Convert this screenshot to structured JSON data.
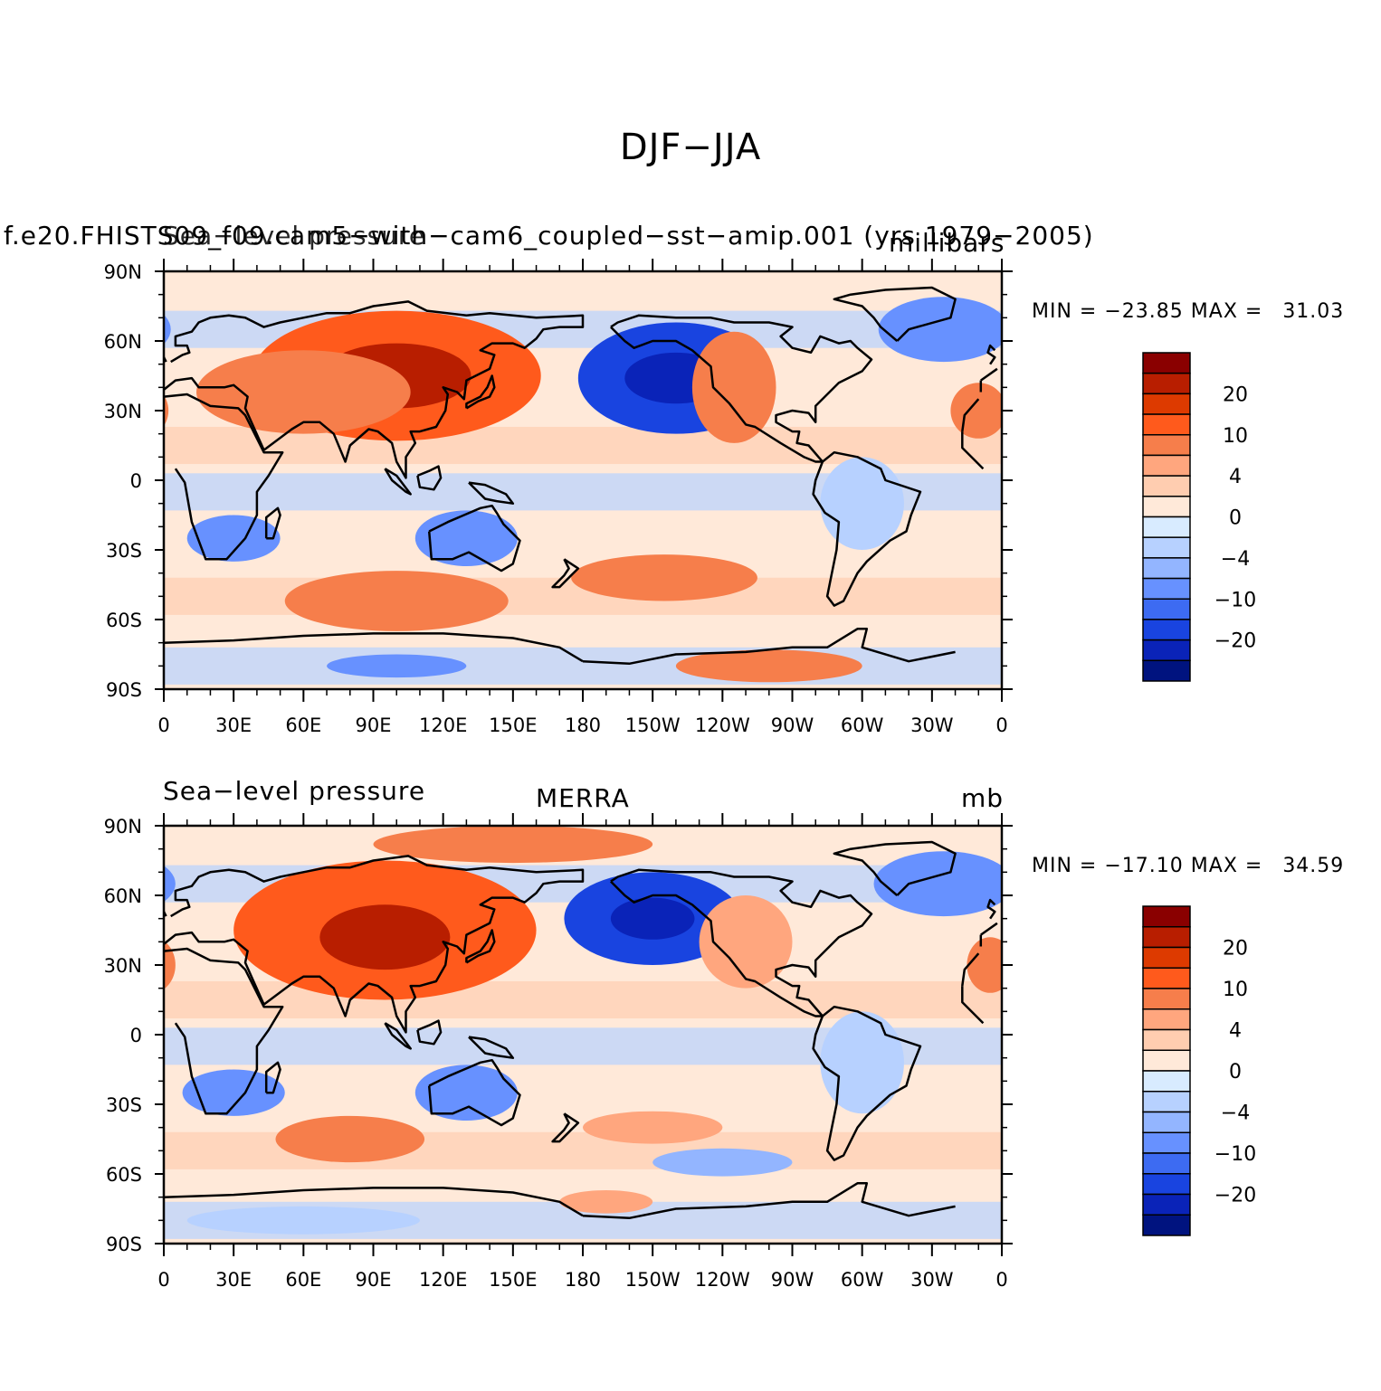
{
  "title": "DJF−JJA",
  "panels": [
    {
      "id": "model",
      "left_label": "Sea−level pressure",
      "center_label": "f.e20.FHISTS09_f09.cam5−with−cam6_coupled−sst−amip.001 (yrs 1979−2005)",
      "right_label": "millibars",
      "min_label": "MIN =",
      "min_value": "−23.85",
      "max_label": "MAX =",
      "max_value": "31.03",
      "fields": [
        {
          "type": "ellipse",
          "lon": -140,
          "lat": 44,
          "rlon": 42,
          "rlat": 24,
          "v": -16
        },
        {
          "type": "ellipse",
          "lon": -140,
          "lat": 44,
          "rlon": 22,
          "rlat": 11,
          "v": -24
        },
        {
          "type": "ellipse",
          "lon": 100,
          "lat": 45,
          "rlon": 62,
          "rlat": 28,
          "v": 12
        },
        {
          "type": "ellipse",
          "lon": 100,
          "lat": 45,
          "rlon": 32,
          "rlat": 14,
          "v": 20
        },
        {
          "type": "ellipse",
          "lon": 60,
          "lat": 38,
          "rlon": 46,
          "rlat": 18,
          "v": 8
        },
        {
          "type": "ellipse",
          "lon": -115,
          "lat": 40,
          "rlon": 18,
          "rlat": 24,
          "v": 7
        },
        {
          "type": "ellipse",
          "lon": -25,
          "lat": 65,
          "rlon": 28,
          "rlat": 14,
          "v": -9
        },
        {
          "type": "ellipse",
          "lon": -10,
          "lat": 30,
          "rlon": 12,
          "rlat": 12,
          "v": 8
        },
        {
          "type": "ellipse",
          "lon": 100,
          "lat": -52,
          "rlon": 48,
          "rlat": 13,
          "v": 9
        },
        {
          "type": "ellipse",
          "lon": -145,
          "lat": -42,
          "rlon": 40,
          "rlat": 10,
          "v": 8
        },
        {
          "type": "ellipse",
          "lon": 130,
          "lat": -25,
          "rlon": 22,
          "rlat": 12,
          "v": -9
        },
        {
          "type": "ellipse",
          "lon": 30,
          "lat": -25,
          "rlon": 20,
          "rlat": 10,
          "v": -8
        },
        {
          "type": "ellipse",
          "lon": -60,
          "lat": -10,
          "rlon": 18,
          "rlat": 20,
          "v": -3
        },
        {
          "type": "ellipse",
          "lon": -100,
          "lat": -80,
          "rlon": 40,
          "rlat": 7,
          "v": 8
        },
        {
          "type": "ellipse",
          "lon": 100,
          "lat": -80,
          "rlon": 30,
          "rlat": 5,
          "v": -10
        }
      ],
      "colorbar_ticks": [
        "20",
        "10",
        "4",
        "0",
        "−4",
        "−10",
        "−20"
      ]
    },
    {
      "id": "obs",
      "left_label": "Sea−level pressure",
      "center_label": "MERRA",
      "right_label": "mb",
      "min_label": "MIN =",
      "min_value": "−17.10",
      "max_label": "MAX =",
      "max_value": "34.59",
      "fields": [
        {
          "type": "ellipse",
          "lon": -150,
          "lat": 50,
          "rlon": 38,
          "rlat": 20,
          "v": -16
        },
        {
          "type": "ellipse",
          "lon": -150,
          "lat": 50,
          "rlon": 18,
          "rlat": 9,
          "v": -22
        },
        {
          "type": "ellipse",
          "lon": 95,
          "lat": 45,
          "rlon": 65,
          "rlat": 30,
          "v": 12
        },
        {
          "type": "ellipse",
          "lon": 95,
          "lat": 42,
          "rlon": 28,
          "rlat": 14,
          "v": 22
        },
        {
          "type": "ellipse",
          "lon": 150,
          "lat": 82,
          "rlon": 60,
          "rlat": 8,
          "v": 8
        },
        {
          "type": "ellipse",
          "lon": -110,
          "lat": 40,
          "rlon": 20,
          "rlat": 20,
          "v": 5
        },
        {
          "type": "ellipse",
          "lon": -25,
          "lat": 65,
          "rlon": 30,
          "rlat": 14,
          "v": -9
        },
        {
          "type": "ellipse",
          "lon": -5,
          "lat": 30,
          "rlon": 10,
          "rlat": 12,
          "v": 8
        },
        {
          "type": "ellipse",
          "lon": 80,
          "lat": -45,
          "rlon": 32,
          "rlat": 10,
          "v": 7
        },
        {
          "type": "ellipse",
          "lon": -150,
          "lat": -40,
          "rlon": 30,
          "rlat": 7,
          "v": 4
        },
        {
          "type": "ellipse",
          "lon": -120,
          "lat": -55,
          "rlon": 30,
          "rlat": 6,
          "v": -5
        },
        {
          "type": "ellipse",
          "lon": 130,
          "lat": -25,
          "rlon": 22,
          "rlat": 12,
          "v": -9
        },
        {
          "type": "ellipse",
          "lon": 30,
          "lat": -25,
          "rlon": 22,
          "rlat": 10,
          "v": -8
        },
        {
          "type": "ellipse",
          "lon": -60,
          "lat": -12,
          "rlon": 18,
          "rlat": 22,
          "v": -4
        },
        {
          "type": "ellipse",
          "lon": 60,
          "lat": -80,
          "rlon": 50,
          "rlat": 6,
          "v": -4
        },
        {
          "type": "ellipse",
          "lon": -170,
          "lat": -72,
          "rlon": 20,
          "rlat": 5,
          "v": 4
        }
      ],
      "colorbar_ticks": [
        "20",
        "10",
        "4",
        "0",
        "−4",
        "−10",
        "−20"
      ]
    }
  ],
  "lat_ticks": [
    "90N",
    "60N",
    "30N",
    "0",
    "30S",
    "60S",
    "90S"
  ],
  "lon_ticks": [
    "0",
    "30E",
    "60E",
    "90E",
    "120E",
    "150E",
    "180",
    "150W",
    "120W",
    "90W",
    "60W",
    "30W",
    "0"
  ],
  "colorbar_colors": [
    "#8a0000",
    "#b81e00",
    "#dd3a00",
    "#ff5a1c",
    "#f67e4b",
    "#ffa67e",
    "#ffcdb0",
    "#ffe9d9",
    "#d8ebff",
    "#b7d1ff",
    "#93b5ff",
    "#6791ff",
    "#3d6bf2",
    "#1944e0",
    "#0a23b8",
    "#00137f"
  ],
  "level_bounds": [
    25,
    20,
    15,
    10,
    7,
    4,
    2,
    0,
    -2,
    -4,
    -7,
    -10,
    -15,
    -20,
    -25
  ]
}
